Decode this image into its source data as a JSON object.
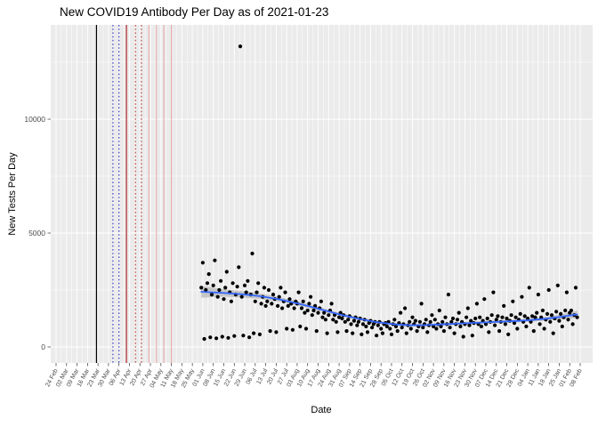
{
  "title": "New COVID19 Antibody Per Day as of 2021-01-23",
  "chart_data": {
    "type": "scatter",
    "title": "New COVID19 Antibody Per Day as of 2021-01-23",
    "xlabel": "Date",
    "ylabel": "New Tests Per Day",
    "panel_bg": "#EBEBEB",
    "grid_color": "#FFFFFF",
    "point_color": "#000000",
    "smooth_color": "#3366FF",
    "ribbon_color": "#A6A6A6",
    "legend": "none",
    "x_axis": {
      "tick_interval_days": 7,
      "origin_day": 0,
      "max_day": 350,
      "tick_labels": [
        "24 Feb",
        "02 Mar",
        "09 Mar",
        "16 Mar",
        "23 Mar",
        "30 Mar",
        "06 Apr",
        "13 Apr",
        "20 Apr",
        "27 Apr",
        "04 May",
        "11 May",
        "18 May",
        "25 May",
        "01 Jun",
        "08 Jun",
        "15 Jun",
        "22 Jun",
        "29 Jun",
        "06 Jul",
        "13 Jul",
        "20 Jul",
        "27 Jul",
        "03 Aug",
        "10 Aug",
        "17 Aug",
        "24 Aug",
        "31 Aug",
        "07 Sep",
        "14 Sep",
        "21 Sep",
        "28 Sep",
        "05 Oct",
        "12 Oct",
        "19 Oct",
        "26 Oct",
        "02 Nov",
        "09 Nov",
        "16 Nov",
        "23 Nov",
        "30 Nov",
        "07 Dec",
        "14 Dec",
        "21 Dec",
        "28 Dec",
        "04 Jan",
        "11 Jan",
        "18 Jan",
        "25 Jan",
        "01 Feb",
        "08 Feb"
      ]
    },
    "y_axis": {
      "ticks": [
        0,
        5000,
        10000
      ],
      "minor_gridlines": [
        2500,
        7500,
        12500
      ],
      "range": [
        -700,
        14150
      ]
    },
    "vlines": [
      {
        "day": 27,
        "approx_date": "22 Mar",
        "color": "#000000",
        "style": "solid",
        "width": 1.2
      },
      {
        "day": 38,
        "approx_date": "02 Apr",
        "color": "#1A1AB2",
        "style": "dotted",
        "width": 1.0
      },
      {
        "day": 42,
        "approx_date": "06 Apr",
        "color": "#1A1AB2",
        "style": "dotted",
        "width": 1.0
      },
      {
        "day": 47,
        "approx_date": "11 Apr",
        "color": "#B22222",
        "style": "solid",
        "width": 1.2
      },
      {
        "day": 53,
        "approx_date": "17 Apr",
        "color": "#B22222",
        "style": "dotted",
        "width": 1.0
      },
      {
        "day": 57,
        "approx_date": "21 Apr",
        "color": "#B22222",
        "style": "dotted",
        "width": 1.0
      },
      {
        "day": 62,
        "approx_date": "26 Apr",
        "color": "#E6A3A3",
        "style": "solid",
        "width": 1.0
      },
      {
        "day": 67,
        "approx_date": "01 May",
        "color": "#E6A3A3",
        "style": "solid",
        "width": 1.0
      },
      {
        "day": 72,
        "approx_date": "06 May",
        "color": "#E6A3A3",
        "style": "solid",
        "width": 1.0
      },
      {
        "day": 77,
        "approx_date": "11 May",
        "color": "#E6A3A3",
        "style": "solid",
        "width": 1.0
      }
    ],
    "smooth": {
      "note": "loess trend line with confidence ribbon; [day, value, ci_half_width]",
      "control_points": [
        [
          97,
          2420,
          260
        ],
        [
          110,
          2380,
          170
        ],
        [
          123,
          2320,
          140
        ],
        [
          136,
          2230,
          120
        ],
        [
          149,
          2090,
          100
        ],
        [
          162,
          1900,
          90
        ],
        [
          175,
          1680,
          80
        ],
        [
          188,
          1450,
          75
        ],
        [
          201,
          1250,
          70
        ],
        [
          214,
          1090,
          65
        ],
        [
          227,
          990,
          60
        ],
        [
          237,
          950,
          60
        ],
        [
          247,
          960,
          60
        ],
        [
          257,
          990,
          60
        ],
        [
          267,
          1020,
          60
        ],
        [
          277,
          1050,
          60
        ],
        [
          287,
          1080,
          60
        ],
        [
          297,
          1110,
          62
        ],
        [
          307,
          1140,
          65
        ],
        [
          317,
          1180,
          70
        ],
        [
          327,
          1240,
          85
        ],
        [
          337,
          1320,
          110
        ],
        [
          348,
          1430,
          160
        ]
      ]
    },
    "points_unit": "[days since axis origin (tick '24 Feb'), new antibody tests per day]",
    "points": [
      [
        97,
        2600
      ],
      [
        98,
        3700
      ],
      [
        99,
        350
      ],
      [
        100,
        2500
      ],
      [
        101,
        2800
      ],
      [
        102,
        3200
      ],
      [
        103,
        420
      ],
      [
        104,
        2300
      ],
      [
        105,
        2700
      ],
      [
        106,
        3800
      ],
      [
        107,
        380
      ],
      [
        108,
        2200
      ],
      [
        109,
        2500
      ],
      [
        110,
        2900
      ],
      [
        111,
        450
      ],
      [
        112,
        2100
      ],
      [
        113,
        2600
      ],
      [
        114,
        3300
      ],
      [
        115,
        400
      ],
      [
        116,
        2400
      ],
      [
        117,
        2000
      ],
      [
        118,
        2800
      ],
      [
        119,
        480
      ],
      [
        120,
        2300
      ],
      [
        121,
        2650
      ],
      [
        122,
        3500
      ],
      [
        123,
        13200
      ],
      [
        124,
        2200
      ],
      [
        125,
        500
      ],
      [
        126,
        2700
      ],
      [
        127,
        2400
      ],
      [
        128,
        2900
      ],
      [
        129,
        420
      ],
      [
        130,
        2300
      ],
      [
        131,
        4100
      ],
      [
        132,
        600
      ],
      [
        133,
        2000
      ],
      [
        134,
        2400
      ],
      [
        135,
        2800
      ],
      [
        136,
        550
      ],
      [
        137,
        1900
      ],
      [
        138,
        2200
      ],
      [
        139,
        2600
      ],
      [
        140,
        1800
      ],
      [
        141,
        2000
      ],
      [
        142,
        2500
      ],
      [
        143,
        700
      ],
      [
        144,
        1900
      ],
      [
        145,
        2300
      ],
      [
        146,
        2100
      ],
      [
        147,
        650
      ],
      [
        148,
        1800
      ],
      [
        149,
        2200
      ],
      [
        150,
        2600
      ],
      [
        151,
        1700
      ],
      [
        152,
        2000
      ],
      [
        153,
        2400
      ],
      [
        154,
        800
      ],
      [
        155,
        1800
      ],
      [
        156,
        2100
      ],
      [
        157,
        1900
      ],
      [
        158,
        750
      ],
      [
        159,
        1700
      ],
      [
        160,
        2000
      ],
      [
        161,
        1900
      ],
      [
        162,
        2400
      ],
      [
        163,
        900
      ],
      [
        164,
        1700
      ],
      [
        165,
        2000
      ],
      [
        166,
        1500
      ],
      [
        167,
        800
      ],
      [
        168,
        1600
      ],
      [
        169,
        1900
      ],
      [
        170,
        2200
      ],
      [
        171,
        1400
      ],
      [
        172,
        1600
      ],
      [
        173,
        1800
      ],
      [
        174,
        700
      ],
      [
        175,
        1500
      ],
      [
        176,
        1700
      ],
      [
        177,
        2000
      ],
      [
        178,
        1300
      ],
      [
        179,
        1500
      ],
      [
        180,
        1200
      ],
      [
        181,
        600
      ],
      [
        182,
        1400
      ],
      [
        183,
        1600
      ],
      [
        184,
        1900
      ],
      [
        185,
        1200
      ],
      [
        186,
        1400
      ],
      [
        187,
        1100
      ],
      [
        188,
        650
      ],
      [
        189,
        1300
      ],
      [
        190,
        1500
      ],
      [
        191,
        1250
      ],
      [
        192,
        1400
      ],
      [
        193,
        1100
      ],
      [
        194,
        700
      ],
      [
        195,
        1200
      ],
      [
        196,
        1350
      ],
      [
        197,
        1000
      ],
      [
        198,
        600
      ],
      [
        199,
        1150
      ],
      [
        200,
        1300
      ],
      [
        201,
        950
      ],
      [
        202,
        1100
      ],
      [
        203,
        1250
      ],
      [
        204,
        550
      ],
      [
        205,
        1000
      ],
      [
        206,
        1200
      ],
      [
        207,
        900
      ],
      [
        208,
        650
      ],
      [
        209,
        1050
      ],
      [
        210,
        1150
      ],
      [
        211,
        850
      ],
      [
        212,
        1000
      ],
      [
        213,
        1100
      ],
      [
        214,
        500
      ],
      [
        215,
        950
      ],
      [
        216,
        1100
      ],
      [
        217,
        800
      ],
      [
        218,
        600
      ],
      [
        219,
        1000
      ],
      [
        220,
        1050
      ],
      [
        221,
        900
      ],
      [
        222,
        1100
      ],
      [
        223,
        800
      ],
      [
        224,
        550
      ],
      [
        225,
        1000
      ],
      [
        226,
        1200
      ],
      [
        227,
        900
      ],
      [
        228,
        700
      ],
      [
        229,
        1050
      ],
      [
        230,
        1500
      ],
      [
        231,
        850
      ],
      [
        232,
        1000
      ],
      [
        233,
        1700
      ],
      [
        234,
        600
      ],
      [
        235,
        950
      ],
      [
        236,
        1100
      ],
      [
        237,
        800
      ],
      [
        238,
        1300
      ],
      [
        239,
        1000
      ],
      [
        240,
        1150
      ],
      [
        241,
        700
      ],
      [
        242,
        900
      ],
      [
        243,
        1100
      ],
      [
        244,
        1900
      ],
      [
        245,
        850
      ],
      [
        246,
        1000
      ],
      [
        247,
        1200
      ],
      [
        248,
        650
      ],
      [
        249,
        950
      ],
      [
        250,
        1100
      ],
      [
        251,
        1400
      ],
      [
        252,
        900
      ],
      [
        253,
        1200
      ],
      [
        254,
        800
      ],
      [
        255,
        1000
      ],
      [
        256,
        1600
      ],
      [
        257,
        900
      ],
      [
        258,
        1100
      ],
      [
        259,
        700
      ],
      [
        260,
        1300
      ],
      [
        261,
        1000
      ],
      [
        262,
        2300
      ],
      [
        263,
        850
      ],
      [
        264,
        1100
      ],
      [
        265,
        1250
      ],
      [
        266,
        600
      ],
      [
        267,
        1000
      ],
      [
        268,
        1200
      ],
      [
        269,
        1500
      ],
      [
        270,
        900
      ],
      [
        271,
        1100
      ],
      [
        272,
        450
      ],
      [
        273,
        1000
      ],
      [
        274,
        1300
      ],
      [
        275,
        1700
      ],
      [
        276,
        950
      ],
      [
        277,
        1150
      ],
      [
        278,
        500
      ],
      [
        279,
        1050
      ],
      [
        280,
        1250
      ],
      [
        281,
        1900
      ],
      [
        282,
        1000
      ],
      [
        283,
        1300
      ],
      [
        284,
        900
      ],
      [
        285,
        1150
      ],
      [
        286,
        2100
      ],
      [
        287,
        1000
      ],
      [
        288,
        1250
      ],
      [
        289,
        650
      ],
      [
        290,
        1100
      ],
      [
        291,
        1400
      ],
      [
        292,
        2400
      ],
      [
        293,
        950
      ],
      [
        294,
        1200
      ],
      [
        295,
        1350
      ],
      [
        296,
        700
      ],
      [
        297,
        1100
      ],
      [
        298,
        1300
      ],
      [
        299,
        1800
      ],
      [
        300,
        1000
      ],
      [
        301,
        1250
      ],
      [
        302,
        550
      ],
      [
        303,
        1150
      ],
      [
        304,
        1400
      ],
      [
        305,
        2000
      ],
      [
        306,
        1050
      ],
      [
        307,
        1300
      ],
      [
        308,
        800
      ],
      [
        309,
        1200
      ],
      [
        310,
        1450
      ],
      [
        311,
        2200
      ],
      [
        312,
        1100
      ],
      [
        313,
        1350
      ],
      [
        314,
        900
      ],
      [
        315,
        1250
      ],
      [
        316,
        2600
      ],
      [
        317,
        1100
      ],
      [
        318,
        1350
      ],
      [
        319,
        700
      ],
      [
        320,
        1300
      ],
      [
        321,
        1500
      ],
      [
        322,
        2300
      ],
      [
        323,
        1000
      ],
      [
        324,
        1300
      ],
      [
        325,
        1600
      ],
      [
        326,
        800
      ],
      [
        327,
        1200
      ],
      [
        328,
        1450
      ],
      [
        329,
        2500
      ],
      [
        330,
        1100
      ],
      [
        331,
        1400
      ],
      [
        332,
        600
      ],
      [
        333,
        1250
      ],
      [
        334,
        1550
      ],
      [
        335,
        2700
      ],
      [
        336,
        1150
      ],
      [
        337,
        1450
      ],
      [
        338,
        900
      ],
      [
        339,
        1300
      ],
      [
        340,
        1600
      ],
      [
        341,
        2400
      ],
      [
        342,
        1200
      ],
      [
        343,
        1500
      ],
      [
        344,
        1600
      ],
      [
        345,
        1000
      ],
      [
        346,
        1400
      ],
      [
        347,
        2600
      ],
      [
        348,
        1300
      ]
    ]
  }
}
